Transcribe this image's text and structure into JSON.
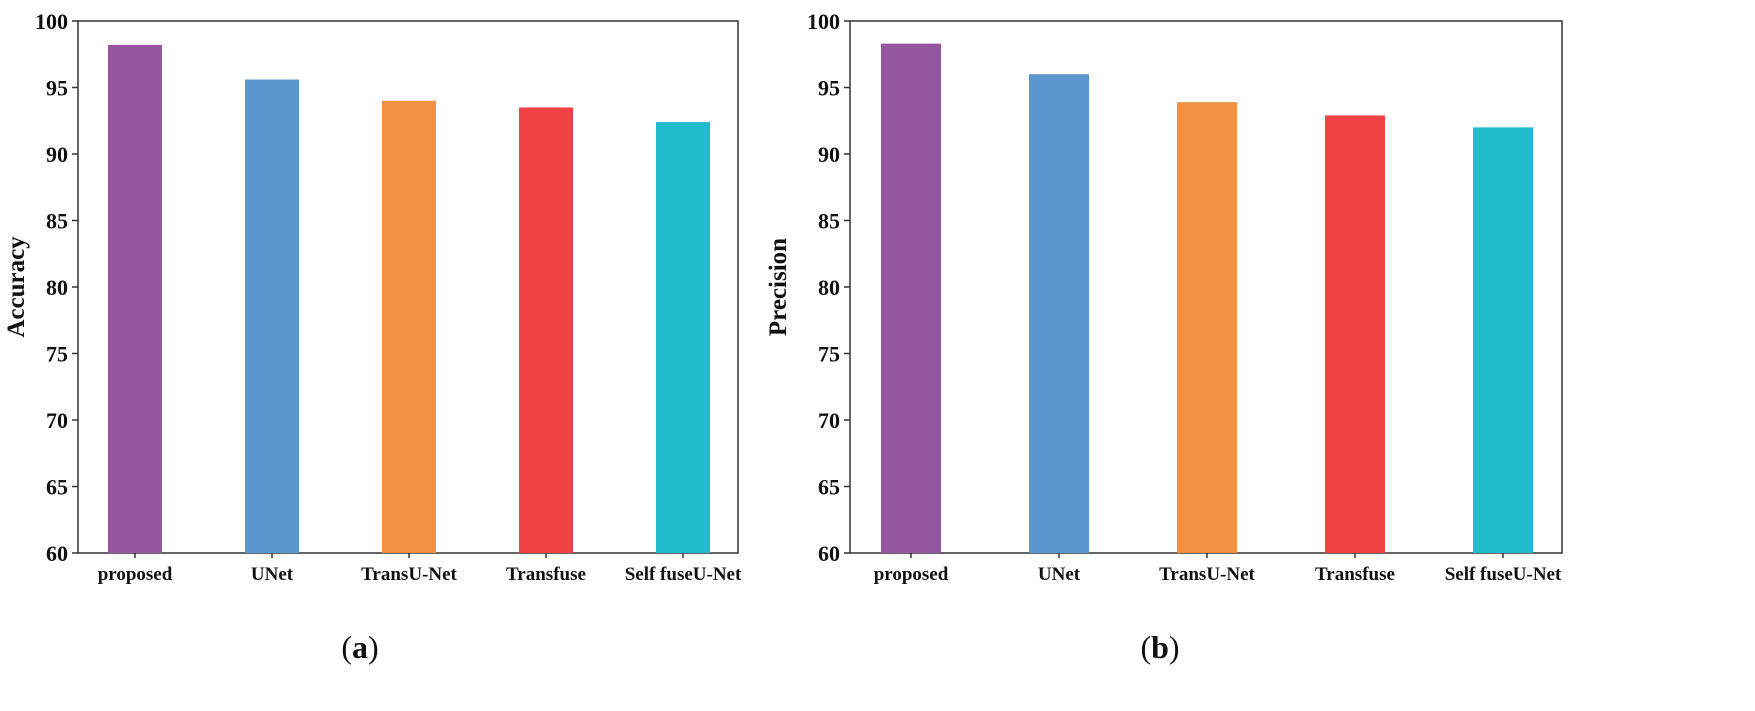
{
  "chart_data": [
    {
      "type": "bar",
      "panel_label": "a",
      "ylabel": "Accuracy",
      "xlabel": "",
      "ylim": [
        60,
        100
      ],
      "yticks": [
        60,
        65,
        70,
        75,
        80,
        85,
        90,
        95,
        100
      ],
      "categories": [
        "proposed",
        "UNet",
        "TransU-Net",
        "Transfuse",
        "Self fuseU-Net"
      ],
      "values": [
        98.2,
        95.6,
        94.0,
        93.5,
        92.4
      ],
      "colors": [
        "#9558a0",
        "#5b96cf",
        "#f39142",
        "#ef4244",
        "#1fbccd"
      ]
    },
    {
      "type": "bar",
      "panel_label": "b",
      "ylabel": "Precision",
      "xlabel": "",
      "ylim": [
        60,
        100
      ],
      "yticks": [
        60,
        65,
        70,
        75,
        80,
        85,
        90,
        95,
        100
      ],
      "categories": [
        "proposed",
        "UNet",
        "TransU-Net",
        "Transfuse",
        "Self fuseU-Net"
      ],
      "values": [
        98.3,
        96.0,
        93.9,
        92.9,
        92.0
      ],
      "colors": [
        "#9558a0",
        "#5b96cf",
        "#f39142",
        "#ef4244",
        "#1fbccd"
      ]
    }
  ]
}
